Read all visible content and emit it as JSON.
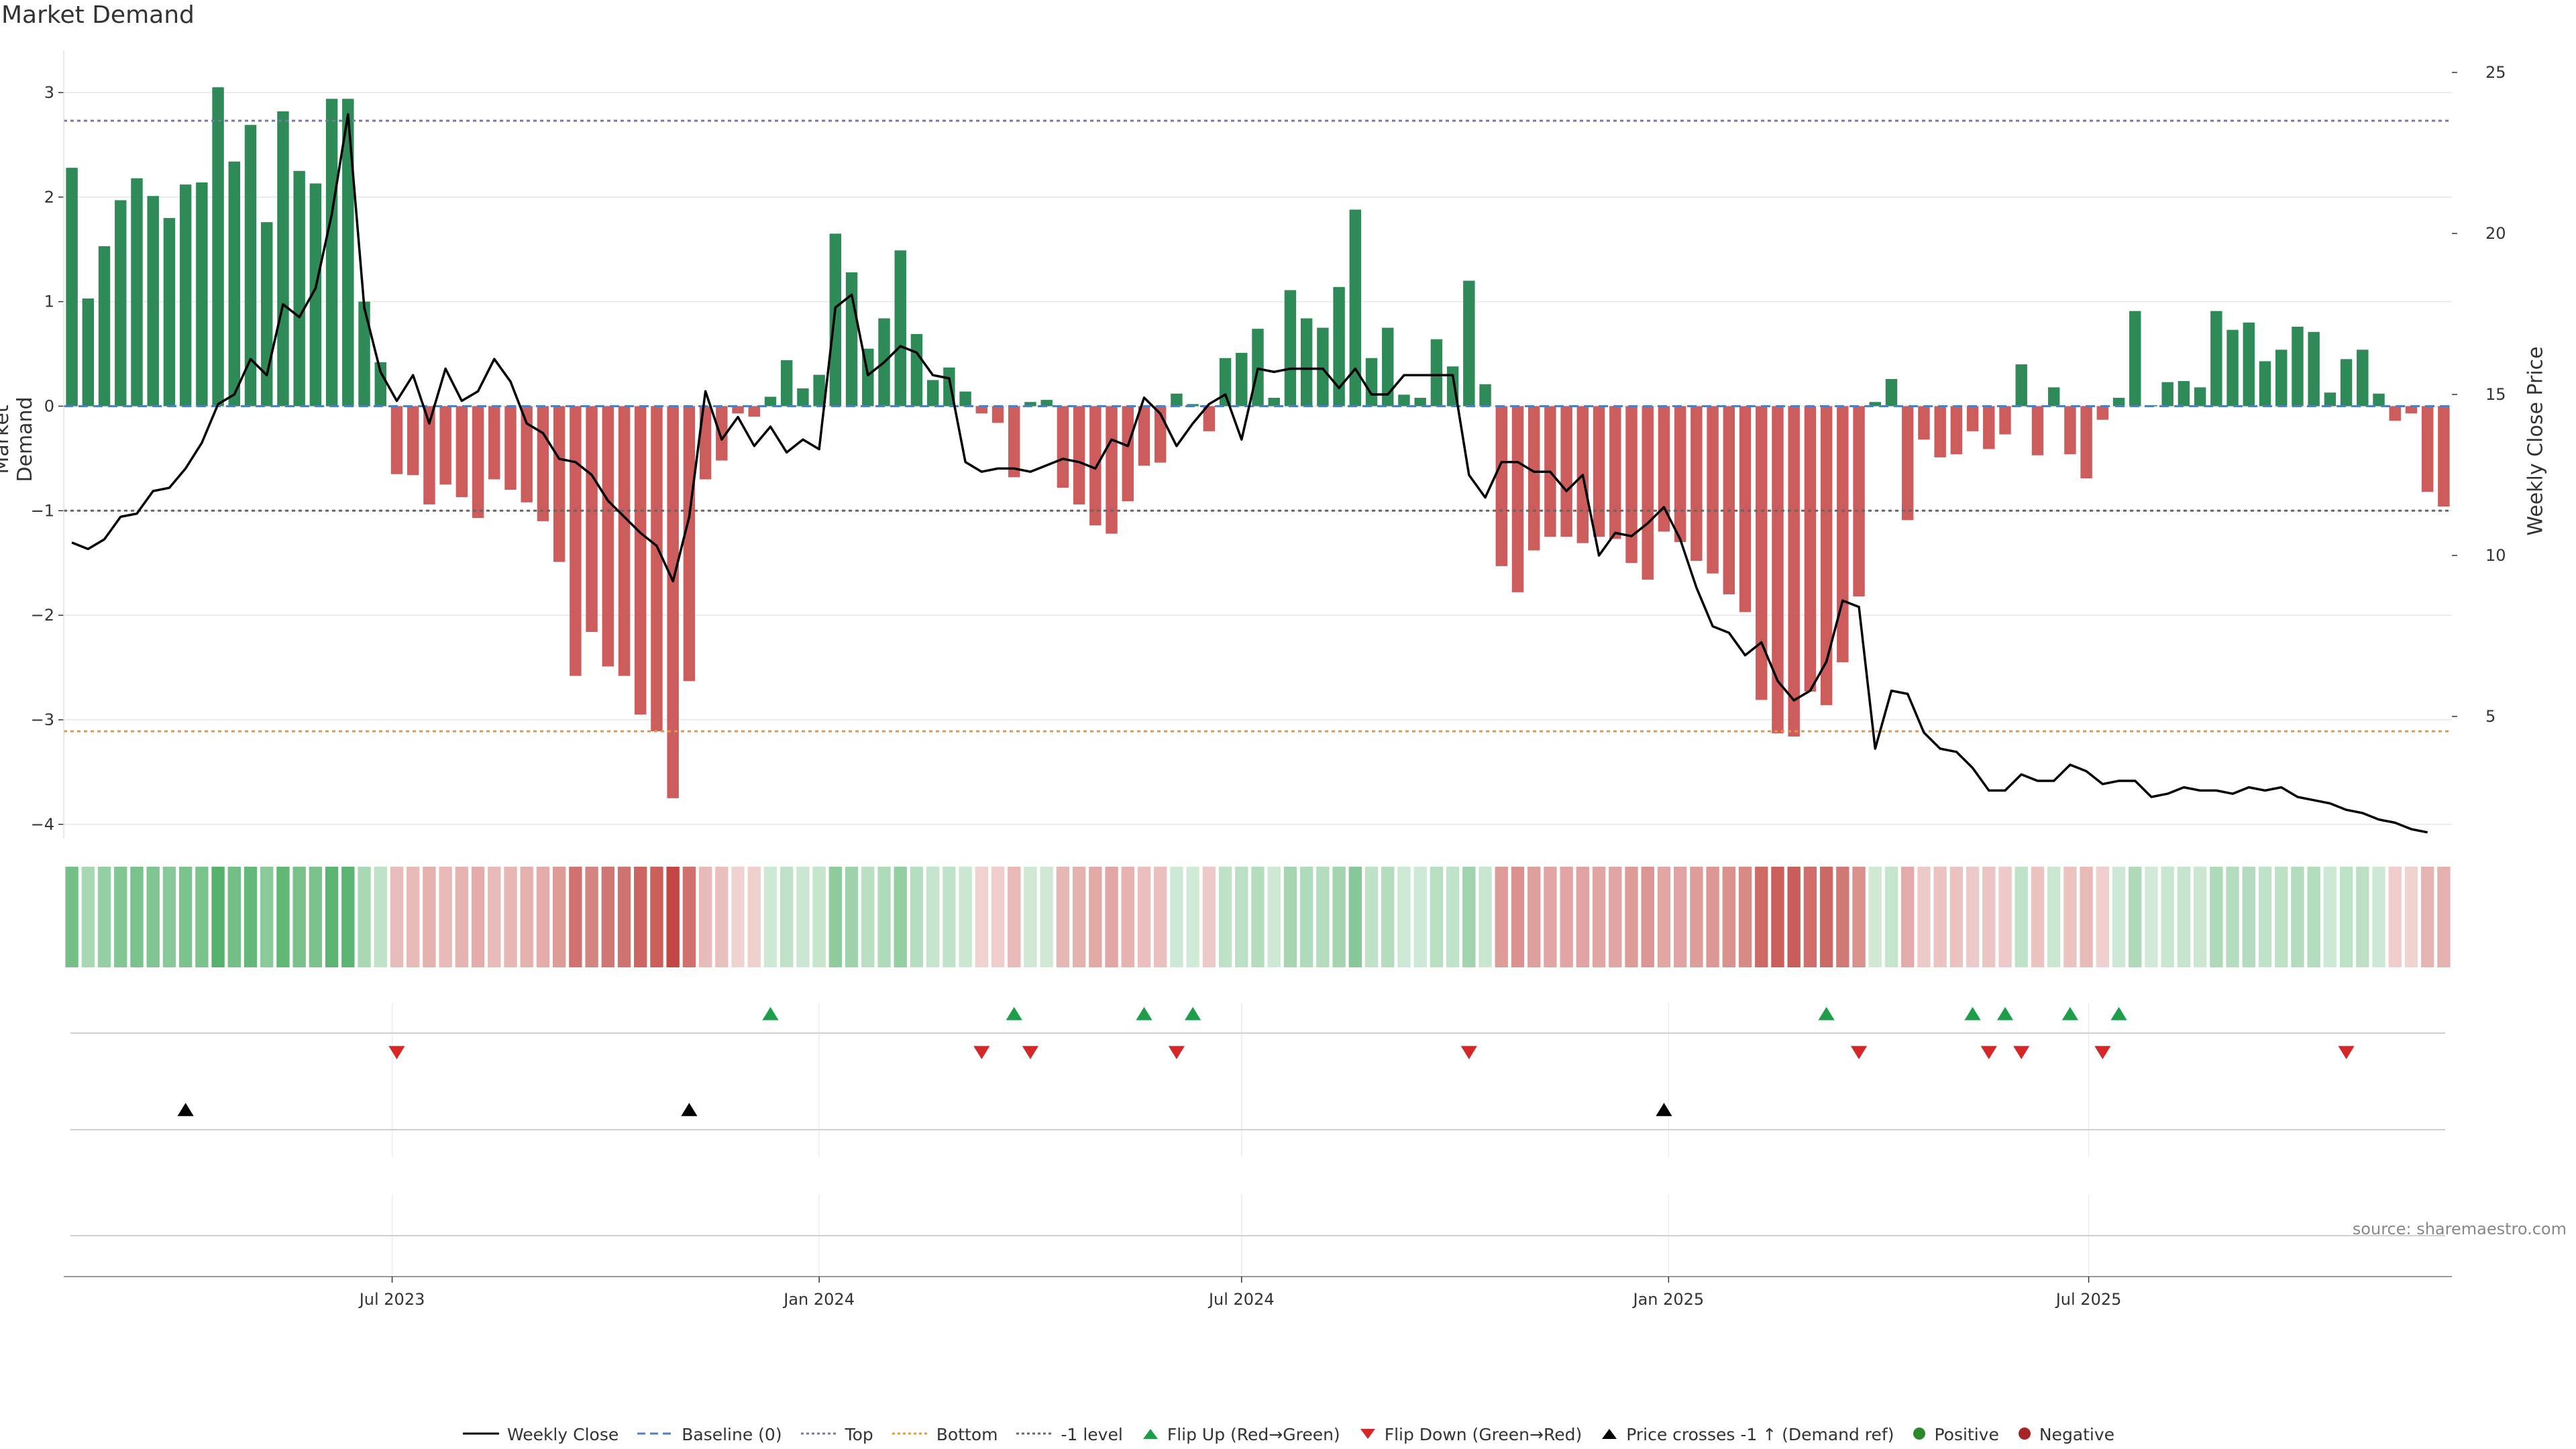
{
  "title": "Market Demand",
  "source": "source: sharemaestro.com",
  "colors": {
    "positive": "#2e8b57",
    "negative": "#cd5c5c",
    "price": "#000000",
    "top_line": "#7a75b0",
    "bottom_line": "#e39a3c",
    "minus1_line": "#666666",
    "baseline": "#4d7fc4",
    "flip_up": "#1f9e4a",
    "flip_down": "#d62728",
    "cross": "#000000",
    "positive_dot": "#2a8a2a",
    "negative_dot": "#a82323"
  },
  "legend": [
    {
      "label": "Weekly Close",
      "key": "line-solid"
    },
    {
      "label": "Baseline (0)",
      "key": "line-dash-blue"
    },
    {
      "label": "Top",
      "key": "line-dot-purple"
    },
    {
      "label": "Bottom",
      "key": "line-dot-orange"
    },
    {
      "label": "-1 level",
      "key": "line-dot-gray"
    },
    {
      "label": "Flip Up (Red→Green)",
      "key": "tri-up-green"
    },
    {
      "label": "Flip Down (Green→Red)",
      "key": "tri-down-red"
    },
    {
      "label": "Price crosses -1 ↑ (Demand ref)",
      "key": "tri-up-black"
    },
    {
      "label": "Positive",
      "key": "dot-green"
    },
    {
      "label": "Negative",
      "key": "dot-red"
    }
  ],
  "chart_data": {
    "type": "bar",
    "start_date": "2023-02-13",
    "week_step_days": 7,
    "xlabel": "",
    "ylabel": "Market Demand",
    "y2label": "Weekly Close Price",
    "ylim": [
      -4.2,
      3.5
    ],
    "y2lim": [
      1,
      26
    ],
    "yticks": [
      3,
      2,
      1,
      0,
      -1,
      -2,
      -3,
      -4
    ],
    "ytick_labels": [
      "3",
      "2",
      "1",
      "0",
      "−1",
      "−2",
      "−3",
      "−4"
    ],
    "y2ticks": [
      25,
      20,
      15,
      10,
      5
    ],
    "xticks": [
      {
        "date": "2023-07-01",
        "label": "Jul 2023"
      },
      {
        "date": "2024-01-01",
        "label": "Jan 2024"
      },
      {
        "date": "2024-07-01",
        "label": "Jul 2024"
      },
      {
        "date": "2025-01-01",
        "label": "Jan 2025"
      },
      {
        "date": "2025-07-01",
        "label": "Jul 2025"
      }
    ],
    "levels": {
      "top": 2.73,
      "bottom": -3.11,
      "minus1": -1.0,
      "baseline": 0
    },
    "demand": [
      2.28,
      1.03,
      1.53,
      1.97,
      2.18,
      2.01,
      1.8,
      2.12,
      2.14,
      3.05,
      2.34,
      2.69,
      1.76,
      2.82,
      2.25,
      2.13,
      2.94,
      2.94,
      1.0,
      0.42,
      -0.65,
      -0.66,
      -0.94,
      -0.75,
      -0.87,
      -1.07,
      -0.7,
      -0.8,
      -0.92,
      -1.1,
      -1.49,
      -2.58,
      -2.16,
      -2.49,
      -2.58,
      -2.95,
      -3.11,
      -3.75,
      -2.63,
      -0.7,
      -0.52,
      -0.07,
      -0.1,
      0.09,
      0.44,
      0.17,
      0.3,
      1.65,
      1.28,
      0.55,
      0.84,
      1.49,
      0.69,
      0.25,
      0.37,
      0.14,
      -0.07,
      -0.16,
      -0.68,
      0.04,
      0.06,
      -0.78,
      -0.94,
      -1.14,
      -1.22,
      -0.91,
      -0.57,
      -0.54,
      0.12,
      0.02,
      -0.24,
      0.46,
      0.51,
      0.74,
      0.08,
      1.11,
      0.84,
      0.75,
      1.14,
      1.88,
      0.46,
      0.75,
      0.11,
      0.08,
      0.64,
      0.38,
      1.2,
      0.21,
      -1.53,
      -1.78,
      -1.38,
      -1.25,
      -1.25,
      -1.31,
      -1.25,
      -1.27,
      -1.5,
      -1.66,
      -1.2,
      -1.3,
      -1.48,
      -1.6,
      -1.8,
      -1.97,
      -2.81,
      -3.13,
      -3.16,
      -2.73,
      -2.86,
      -2.45,
      -1.82,
      0.04,
      0.26,
      -1.09,
      -0.32,
      -0.49,
      -0.46,
      -0.24,
      -0.41,
      -0.27,
      0.4,
      -0.47,
      0.18,
      -0.46,
      -0.69,
      -0.13,
      0.08,
      0.91,
      0.01,
      0.23,
      0.24,
      0.18,
      0.91,
      0.73,
      0.8,
      0.43,
      0.54,
      0.76,
      0.71,
      0.13,
      0.45,
      0.54,
      0.12,
      -0.14,
      -0.07,
      -0.82,
      -0.96
    ],
    "price": [
      10.4,
      10.2,
      10.5,
      11.2,
      11.3,
      12.0,
      12.1,
      12.7,
      13.5,
      14.7,
      15.0,
      16.1,
      15.6,
      17.8,
      17.4,
      18.3,
      20.6,
      23.7,
      17.7,
      15.7,
      14.8,
      15.6,
      14.1,
      15.8,
      14.8,
      15.1,
      16.1,
      15.4,
      14.1,
      13.8,
      13.0,
      12.9,
      12.5,
      11.7,
      11.2,
      10.7,
      10.3,
      9.2,
      11.2,
      15.1,
      13.6,
      14.3,
      13.4,
      14.0,
      13.2,
      13.6,
      13.3,
      17.7,
      18.1,
      15.6,
      16.0,
      16.5,
      16.3,
      15.6,
      15.5,
      12.9,
      12.6,
      12.7,
      12.7,
      12.6,
      12.8,
      13.0,
      12.9,
      12.7,
      13.6,
      13.4,
      14.9,
      14.4,
      13.4,
      14.1,
      14.7,
      15.0,
      13.6,
      15.8,
      15.7,
      15.8,
      15.8,
      15.8,
      15.2,
      15.8,
      15.0,
      15.0,
      15.6,
      15.6,
      15.6,
      15.6,
      12.5,
      11.8,
      12.9,
      12.9,
      12.6,
      12.6,
      12.0,
      12.5,
      10.0,
      10.7,
      10.6,
      11.0,
      11.5,
      10.5,
      9.0,
      7.8,
      7.6,
      6.9,
      7.3,
      6.1,
      5.5,
      5.8,
      6.7,
      8.6,
      8.4,
      4.0,
      5.8,
      5.7,
      4.5,
      4.0,
      3.9,
      3.4,
      2.7,
      2.7,
      3.2,
      3.0,
      3.0,
      3.5,
      3.3,
      2.9,
      3.0,
      3.0,
      2.5,
      2.6,
      2.8,
      2.7,
      2.7,
      2.6,
      2.8,
      2.7,
      2.8,
      2.5,
      2.4,
      2.3,
      2.1,
      2.0,
      1.8,
      1.7,
      1.5,
      1.4
    ],
    "flip_up_weeks": [
      43,
      58,
      66,
      69,
      108,
      117,
      119,
      123,
      126
    ],
    "flip_down_weeks": [
      20,
      56,
      59,
      68,
      86,
      110,
      118,
      120,
      125,
      140
    ],
    "cross_weeks": [
      7,
      38,
      98
    ]
  }
}
